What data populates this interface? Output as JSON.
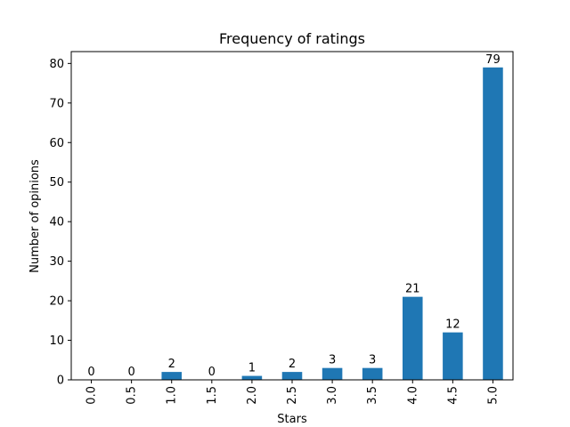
{
  "chart_data": {
    "type": "bar",
    "title": "Frequency of ratings",
    "xlabel": "Stars",
    "ylabel": "Number of opinions",
    "categories": [
      "0.0",
      "0.5",
      "1.0",
      "1.5",
      "2.0",
      "2.5",
      "3.0",
      "3.5",
      "4.0",
      "4.5",
      "5.0"
    ],
    "values": [
      0,
      0,
      2,
      0,
      1,
      2,
      3,
      3,
      21,
      12,
      79
    ],
    "ylim": [
      0,
      83
    ],
    "yticks": [
      0,
      10,
      20,
      30,
      40,
      50,
      60,
      70,
      80
    ],
    "bar_color": "#1f77b4",
    "grid": false,
    "legend": "none",
    "xtick_rotation": "vertical"
  }
}
